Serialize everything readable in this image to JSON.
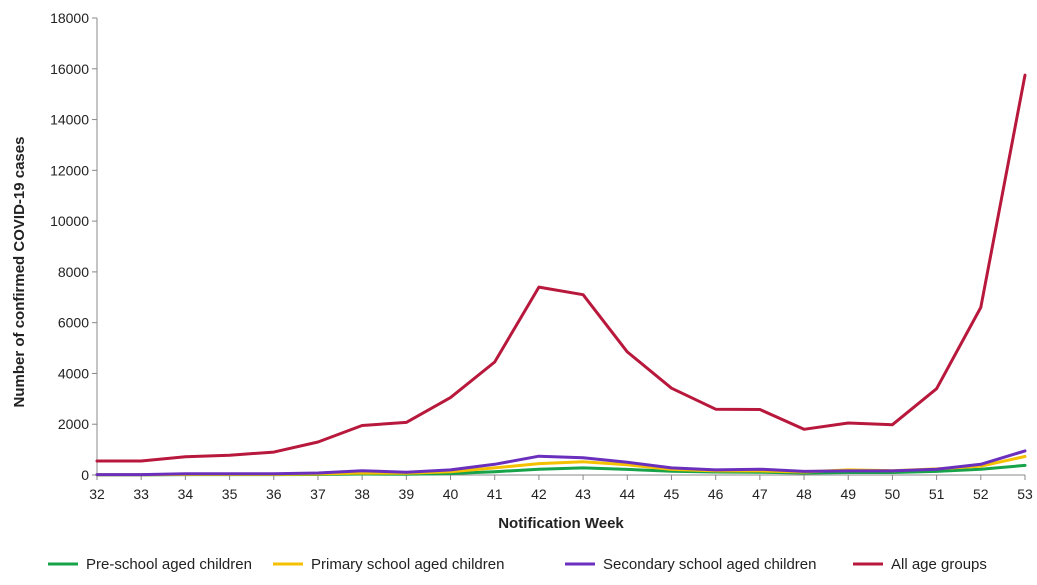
{
  "chart_data": {
    "type": "line",
    "title": "",
    "xlabel": "Notification Week",
    "ylabel": "Number of confirmed COVID-19 cases",
    "x": [
      32,
      33,
      34,
      35,
      36,
      37,
      38,
      39,
      40,
      41,
      42,
      43,
      44,
      45,
      46,
      47,
      48,
      49,
      50,
      51,
      52,
      53
    ],
    "ylim": [
      0,
      18000
    ],
    "yticks": [
      0,
      2000,
      4000,
      6000,
      8000,
      10000,
      12000,
      14000,
      16000,
      18000
    ],
    "grid": false,
    "legend_position": "bottom",
    "series": [
      {
        "name": "Pre-school aged children",
        "color": "#16a34a",
        "values": [
          5,
          5,
          15,
          15,
          15,
          20,
          40,
          30,
          60,
          130,
          230,
          280,
          220,
          150,
          120,
          110,
          80,
          100,
          100,
          140,
          230,
          380
        ]
      },
      {
        "name": "Primary school aged children",
        "color": "#f5c000",
        "values": [
          10,
          10,
          25,
          25,
          25,
          40,
          80,
          70,
          130,
          280,
          450,
          520,
          400,
          220,
          160,
          160,
          120,
          200,
          170,
          240,
          350,
          730
        ]
      },
      {
        "name": "Secondary school aged children",
        "color": "#6a2fbd",
        "values": [
          15,
          15,
          50,
          50,
          50,
          80,
          170,
          110,
          200,
          420,
          740,
          680,
          500,
          280,
          200,
          230,
          140,
          160,
          160,
          230,
          420,
          950
        ]
      },
      {
        "name": "All age groups",
        "color": "#b8183c",
        "values": [
          550,
          550,
          720,
          780,
          900,
          1300,
          1950,
          2070,
          3050,
          4450,
          7400,
          7100,
          4850,
          3420,
          2590,
          2580,
          1800,
          2050,
          1980,
          3400,
          6600,
          15750
        ]
      }
    ]
  }
}
